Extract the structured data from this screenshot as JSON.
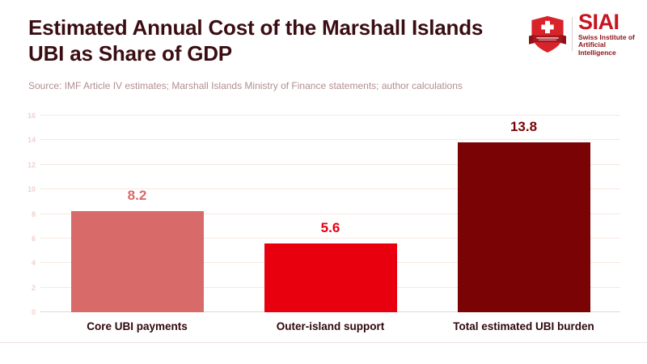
{
  "header": {
    "title": "Estimated Annual Cost of the Marshall Islands UBI as Share of GDP",
    "source": "Source: IMF Article IV estimates; Marshall Islands Ministry of Finance statements; author calculations"
  },
  "logo": {
    "acronym": "SIAI",
    "tagline_line1": "Swiss Institute of",
    "tagline_line2": "Artificial Intelligence",
    "shield_red": "#d8232a",
    "ribbon_red": "#8c1218",
    "accent_red": "#c8141f"
  },
  "chart_data": {
    "type": "bar",
    "title": "Estimated Annual Cost of the Marshall Islands UBI as Share of GDP",
    "categories": [
      "Core UBI payments",
      "Outer-island support",
      "Total estimated UBI burden"
    ],
    "values": [
      8.2,
      5.6,
      13.8
    ],
    "value_labels": [
      "8.2",
      "5.6",
      "13.8"
    ],
    "bar_colors": [
      "#d96a6a",
      "#e8000f",
      "#7a0305"
    ],
    "label_colors": [
      "#d96a6a",
      "#e8000f",
      "#7a0305"
    ],
    "y_ticks": [
      0,
      2,
      4,
      6,
      8,
      10,
      12,
      14,
      16
    ],
    "ylim": [
      0,
      16
    ],
    "xlabel": "",
    "ylabel": "",
    "grid": true,
    "legend": false,
    "gridline_color": "#f8e7e3",
    "baseline_color": "#d9d9d9"
  }
}
